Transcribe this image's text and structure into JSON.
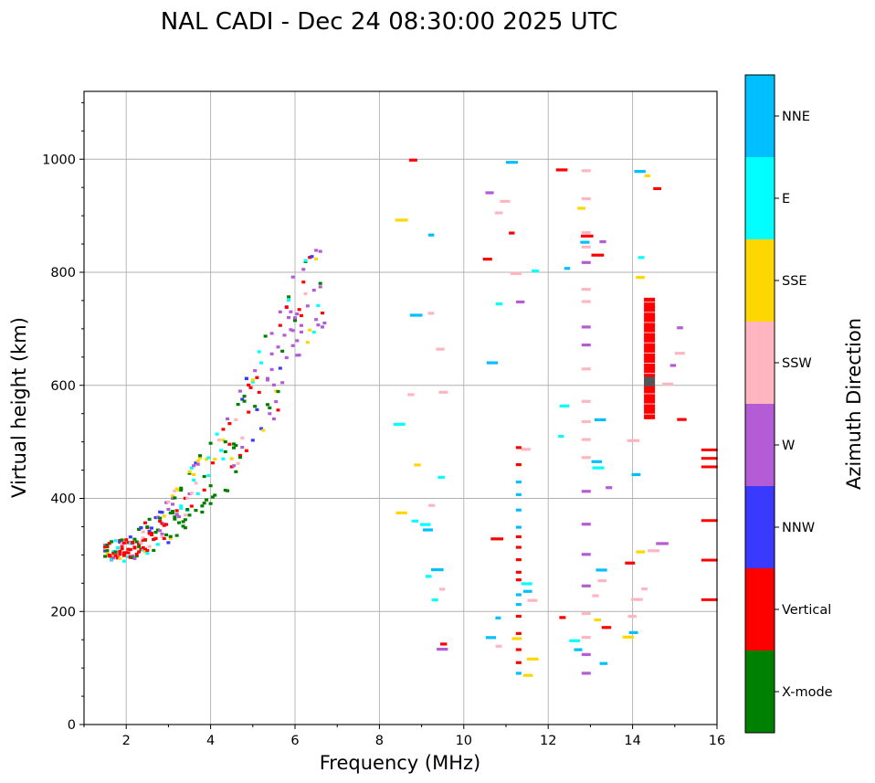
{
  "chart_data": {
    "type": "scatter",
    "title": "NAL CADI - Dec 24 08:30:00 2025 UTC",
    "xlabel": "Frequency (MHz)",
    "ylabel": "Virtual height (km)",
    "xlim": [
      1,
      16
    ],
    "ylim": [
      0,
      1120
    ],
    "xticks": [
      2,
      4,
      6,
      8,
      10,
      12,
      14,
      16
    ],
    "yticks": [
      0,
      200,
      400,
      600,
      800,
      1000
    ],
    "grid": true,
    "colorbar": {
      "label": "Azimuth Direction",
      "categories": [
        "X-mode",
        "Vertical",
        "NNW",
        "W",
        "SSW",
        "SSE",
        "E",
        "NNE"
      ],
      "colors": [
        "#008000",
        "#ff0000",
        "#3a3aff",
        "#b45bd6",
        "#ffb6c1",
        "#ffd700",
        "#00ffff",
        "#00bfff"
      ]
    },
    "traces": [
      {
        "name": "F-region trace lower edge",
        "points": [
          [
            1.5,
            290
          ],
          [
            2,
            285
          ],
          [
            2.5,
            300
          ],
          [
            3,
            320
          ],
          [
            3.5,
            345
          ],
          [
            4,
            380
          ],
          [
            4.5,
            420
          ],
          [
            5,
            470
          ],
          [
            5.5,
            540
          ],
          [
            6,
            610
          ],
          [
            6.5,
            700
          ]
        ]
      },
      {
        "name": "F-region trace upper edge",
        "points": [
          [
            1.5,
            320
          ],
          [
            2,
            330
          ],
          [
            2.5,
            360
          ],
          [
            3,
            400
          ],
          [
            3.5,
            450
          ],
          [
            4,
            500
          ],
          [
            4.5,
            560
          ],
          [
            5,
            640
          ],
          [
            5.5,
            720
          ],
          [
            6,
            800
          ],
          [
            6.6,
            860
          ]
        ]
      }
    ],
    "features": [
      {
        "direction": "Vertical",
        "f": 14.4,
        "h_min": 540,
        "h_max": 755,
        "note": "dense vertical streak"
      },
      {
        "direction": "X-mode",
        "f": 14.4,
        "h_min": 600,
        "h_max": 615
      },
      {
        "direction": "Vertical",
        "f": 15.8,
        "h_min": 455,
        "h_max": 485
      },
      {
        "direction": "Vertical",
        "f": 15.8,
        "h_min": 220,
        "h_max": 360
      }
    ]
  }
}
